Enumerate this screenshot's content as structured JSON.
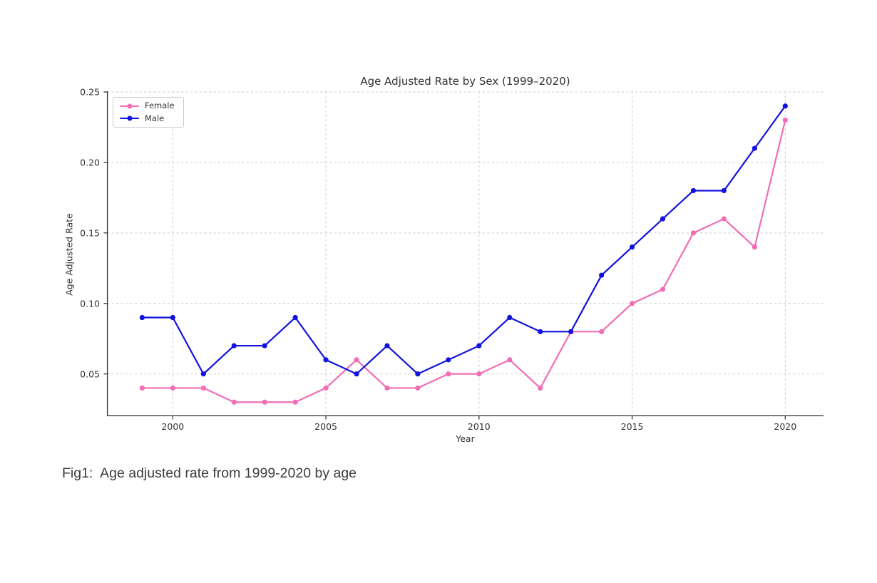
{
  "chart_data": {
    "type": "line",
    "title": "Age Adjusted Rate by Sex (1999–2020)",
    "xlabel": "Year",
    "ylabel": "Age Adjusted Rate",
    "x": [
      1999,
      2000,
      2001,
      2002,
      2003,
      2004,
      2005,
      2006,
      2007,
      2008,
      2009,
      2010,
      2011,
      2012,
      2013,
      2014,
      2015,
      2016,
      2017,
      2018,
      2019,
      2020
    ],
    "series": [
      {
        "name": "Female",
        "color": "#f06eb4",
        "values": [
          0.04,
          0.04,
          0.04,
          0.03,
          0.03,
          0.03,
          0.04,
          0.06,
          0.04,
          0.04,
          0.05,
          0.05,
          0.06,
          0.04,
          0.08,
          0.08,
          0.1,
          0.11,
          0.15,
          0.16,
          0.14,
          0.23
        ]
      },
      {
        "name": "Male",
        "color": "#1212e0",
        "values": [
          0.09,
          0.09,
          0.05,
          0.07,
          0.07,
          0.09,
          0.06,
          0.05,
          0.07,
          0.05,
          0.06,
          0.07,
          0.09,
          0.08,
          0.08,
          0.12,
          0.14,
          0.16,
          0.18,
          0.18,
          0.21,
          0.24
        ]
      }
    ],
    "xlim": [
      1997.85,
      2021.25
    ],
    "ylim": [
      0.02,
      0.2505
    ],
    "xticks": [
      2000,
      2005,
      2010,
      2015,
      2020
    ],
    "xtick_labels": [
      "2000",
      "2005",
      "2010",
      "2015",
      "2020"
    ],
    "yticks": [
      0.05,
      0.1,
      0.15,
      0.2,
      0.25
    ],
    "ytick_labels": [
      "0.05",
      "0.10",
      "0.15",
      "0.20",
      "0.25"
    ],
    "grid": true,
    "grid_style": "dashed",
    "legend_position": "upper left",
    "grid_color": "#cfcfcf",
    "spine_color": "#2b2b2b"
  },
  "caption": "Fig1:  Age adjusted rate from 1999-2020 by age"
}
